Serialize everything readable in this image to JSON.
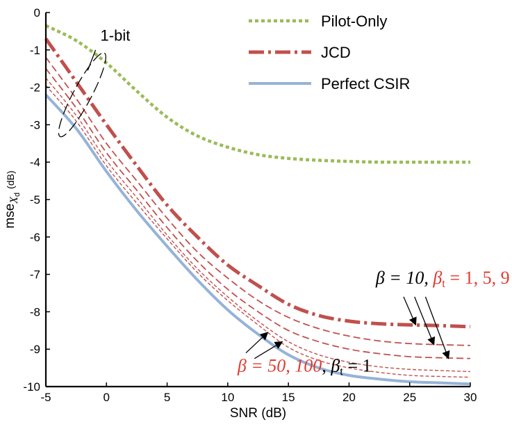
{
  "chart_data": {
    "type": "line",
    "xlabel": "SNR (dB)",
    "ylabel": {
      "main": "mse",
      "sub": "X",
      "subsub": "d",
      "unit": "(dB)"
    },
    "xlim": [
      -5,
      30
    ],
    "ylim": [
      -10,
      0
    ],
    "xticks": [
      -5,
      0,
      5,
      10,
      15,
      20,
      25,
      30
    ],
    "yticks": [
      0,
      -1,
      -2,
      -3,
      -4,
      -5,
      -6,
      -7,
      -8,
      -9,
      -10
    ],
    "grid": false,
    "legend_position": "top-right",
    "legend": [
      {
        "label": "Pilot-Only",
        "style": "dotted",
        "color": "#9bbb59"
      },
      {
        "label": "JCD",
        "style": "dashdot",
        "color": "#c0504d"
      },
      {
        "label": "Perfect CSIR",
        "style": "solid",
        "color": "#95b3d7"
      }
    ],
    "x": [
      -5,
      -2.5,
      0,
      2.5,
      5,
      7.5,
      10,
      12.5,
      15,
      17.5,
      20,
      22.5,
      25,
      27.5,
      30
    ],
    "series": [
      {
        "name": "Pilot-Only",
        "style": "dotted",
        "color": "#9bbb59",
        "values": [
          -0.35,
          -0.75,
          -1.35,
          -2.1,
          -2.8,
          -3.3,
          -3.6,
          -3.8,
          -3.9,
          -3.95,
          -3.98,
          -4.0,
          -4.0,
          -4.0,
          -4.0
        ]
      },
      {
        "name": "JCD",
        "style": "dashdot",
        "color": "#c0504d",
        "values": [
          -0.7,
          -1.85,
          -3.0,
          -4.1,
          -5.15,
          -6.0,
          -6.75,
          -7.3,
          -7.8,
          -8.1,
          -8.25,
          -8.32,
          -8.35,
          -8.37,
          -8.4
        ]
      },
      {
        "style": "dashed",
        "color": "#c0504d",
        "values": [
          -1.2,
          -2.3,
          -3.5,
          -4.5,
          -5.5,
          -6.4,
          -7.1,
          -7.7,
          -8.15,
          -8.45,
          -8.65,
          -8.78,
          -8.85,
          -8.88,
          -8.9
        ]
      },
      {
        "style": "dashed",
        "color": "#c0504d",
        "values": [
          -1.5,
          -2.55,
          -3.75,
          -4.75,
          -5.75,
          -6.65,
          -7.4,
          -8.0,
          -8.5,
          -8.8,
          -9.0,
          -9.12,
          -9.2,
          -9.23,
          -9.25
        ]
      },
      {
        "style": "dashed-thin",
        "color": "#c0504d",
        "values": [
          -1.75,
          -2.75,
          -3.95,
          -4.95,
          -5.95,
          -6.85,
          -7.6,
          -8.25,
          -8.8,
          -9.15,
          -9.35,
          -9.47,
          -9.54,
          -9.57,
          -9.6
        ]
      },
      {
        "style": "dashed-thin",
        "color": "#c0504d",
        "values": [
          -1.95,
          -2.9,
          -4.1,
          -5.1,
          -6.05,
          -6.95,
          -7.7,
          -8.35,
          -8.95,
          -9.3,
          -9.5,
          -9.62,
          -9.7,
          -9.73,
          -9.75
        ]
      },
      {
        "name": "Perfect CSIR",
        "style": "solid",
        "color": "#95b3d7",
        "values": [
          -2.2,
          -3.1,
          -4.25,
          -5.3,
          -6.25,
          -7.15,
          -7.95,
          -8.6,
          -9.15,
          -9.5,
          -9.7,
          -9.8,
          -9.87,
          -9.9,
          -9.93
        ]
      }
    ],
    "annotations": [
      {
        "id": "one-bit",
        "text": "1-bit",
        "ellipse": {
          "cx": -2.0,
          "cy": -2.2,
          "rx_deg": 16,
          "ry_deg": 1.25,
          "rotation": -62
        },
        "label_at": {
          "x": -0.5,
          "y": -0.75
        },
        "leader_from": {
          "x": -0.9,
          "y": -1.0
        },
        "leader_to": {
          "x": -1.55,
          "y": -1.55
        }
      },
      {
        "id": "beta-10",
        "parts": [
          {
            "text": "β = 10, ",
            "color": "#000000"
          },
          {
            "text": "β",
            "color": "#e03c31"
          },
          {
            "text": "t",
            "color": "#e03c31",
            "sub": true
          },
          {
            "text": " = 1, 5, 9",
            "color": "#e03c31"
          }
        ],
        "label_at": {
          "x": 22.2,
          "y": -7.25
        },
        "arrows": [
          {
            "from": {
              "x": 24.5,
              "y": -7.6
            },
            "to": {
              "x": 25.5,
              "y": -8.35
            }
          },
          {
            "from": {
              "x": 25.4,
              "y": -7.6
            },
            "to": {
              "x": 27.0,
              "y": -8.88
            }
          },
          {
            "from": {
              "x": 26.3,
              "y": -7.6
            },
            "to": {
              "x": 28.2,
              "y": -9.25
            }
          }
        ]
      },
      {
        "id": "beta-50",
        "parts": [
          {
            "text": "β = 50, 100",
            "color": "#e03c31"
          },
          {
            "text": ", ",
            "color": "#000000"
          },
          {
            "text": "β",
            "color": "#000000"
          },
          {
            "text": "t",
            "color": "#000000",
            "sub": true
          },
          {
            "text": " = 1",
            "color": "#000000"
          }
        ],
        "label_at": {
          "x": 10.8,
          "y": -9.6
        },
        "arrows": [
          {
            "from": {
              "x": 11.5,
              "y": -9.1
            },
            "to": {
              "x": 13.3,
              "y": -8.55
            }
          },
          {
            "from": {
              "x": 12.2,
              "y": -9.25
            },
            "to": {
              "x": 14.5,
              "y": -8.8
            }
          }
        ]
      }
    ]
  }
}
